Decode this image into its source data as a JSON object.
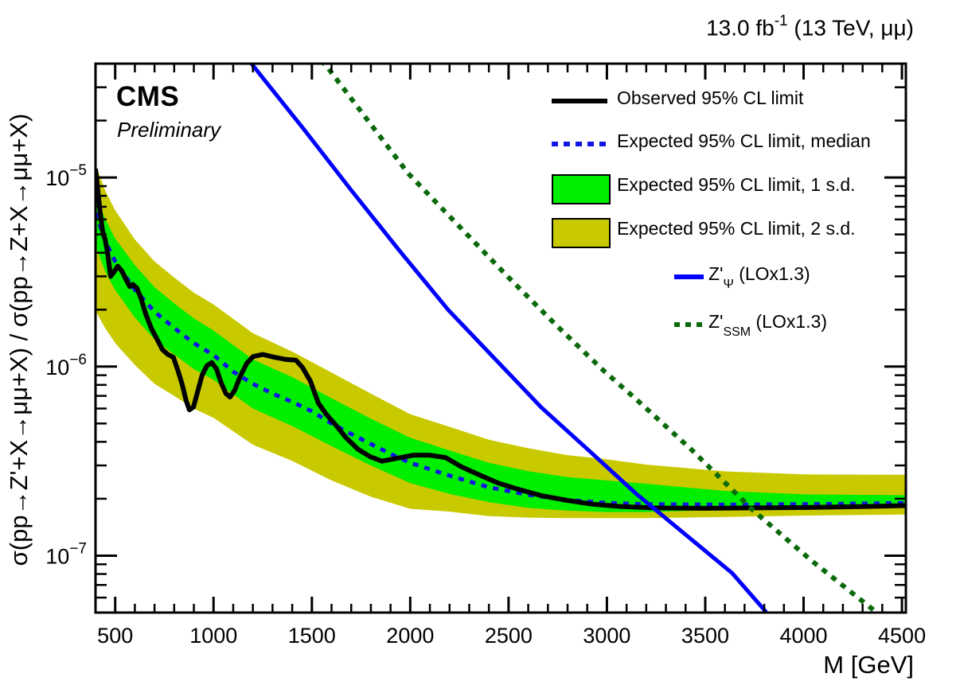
{
  "header": {
    "lumi_prefix": "13.0 fb",
    "lumi_sup": "-1",
    "lumi_suffix": " (13 TeV, μμ)"
  },
  "watermark": {
    "experiment": "CMS",
    "status": "Preliminary"
  },
  "axes": {
    "x_label": "M [GeV]",
    "y_label": "σ(pp→Z'+X→μμ+X) / σ(pp→Z+X→μμ+X)"
  },
  "legend": {
    "items": [
      {
        "label_pre": "Observed 95% CL limit",
        "label_sub": "",
        "label_post": "",
        "swatch": {
          "kind": "line",
          "color": "#000000"
        }
      },
      {
        "label_pre": "Expected 95% CL limit, median",
        "label_sub": "",
        "label_post": "",
        "swatch": {
          "kind": "dashes",
          "color": "#1414e6"
        }
      },
      {
        "label_pre": "Expected 95% CL limit, 1 s.d.",
        "label_sub": "",
        "label_post": "",
        "swatch": {
          "kind": "box",
          "color": "#00ee00"
        }
      },
      {
        "label_pre": "Expected 95% CL limit, 2 s.d.",
        "label_sub": "",
        "label_post": "",
        "swatch": {
          "kind": "box",
          "color": "#c9c900"
        }
      },
      {
        "label_pre": "Z'",
        "label_sub": "Ψ",
        "label_post": " (LOx1.3)",
        "swatch": {
          "kind": "line",
          "color": "#0000ff"
        }
      },
      {
        "label_pre": "Z'",
        "label_sub": "SSM",
        "label_post": " (LOx1.3)",
        "swatch": {
          "kind": "dots",
          "color": "#0a690a"
        }
      }
    ]
  },
  "chart_data": {
    "type": "line",
    "title": "",
    "xlabel": "M [GeV]",
    "ylabel": "σ(pp→Z'+X→μμ+X) / σ(pp→Z+X→μμ+X)",
    "xlim": [
      400,
      4520
    ],
    "ylim": [
      5e-08,
      4e-05
    ],
    "y_scale": "log",
    "x_major_ticks": [
      500,
      1000,
      1500,
      2000,
      2500,
      3000,
      3500,
      4000,
      4500
    ],
    "x_minor_step": 100,
    "y_major_exponents": [
      -5,
      -6,
      -7
    ],
    "grid": false,
    "legend_position": "top-right",
    "colors": {
      "observed": "#000000",
      "expected_median": "#1414e6",
      "band_1sd": "#00ee00",
      "band_2sd": "#c9c900",
      "zpsi": "#0000ff",
      "zssm": "#0a690a"
    },
    "series": [
      {
        "name": "Observed 95% CL limit",
        "style": "solid",
        "points": [
          [
            400,
            1.11e-05
          ],
          [
            412,
            8.5e-06
          ],
          [
            424,
            6.5e-06
          ],
          [
            436,
            5.2e-06
          ],
          [
            449,
            4.7e-06
          ],
          [
            461,
            4e-06
          ],
          [
            477,
            3e-06
          ],
          [
            497,
            3.2e-06
          ],
          [
            513,
            3.4e-06
          ],
          [
            534,
            3.2e-06
          ],
          [
            554,
            2.9e-06
          ],
          [
            574,
            2.65e-06
          ],
          [
            590,
            2.72e-06
          ],
          [
            610,
            2.6e-06
          ],
          [
            631,
            2.3e-06
          ],
          [
            655,
            1.9e-06
          ],
          [
            683,
            1.6e-06
          ],
          [
            712,
            1.4e-06
          ],
          [
            740,
            1.23e-06
          ],
          [
            768,
            1.16e-06
          ],
          [
            796,
            1.12e-06
          ],
          [
            821,
            9.4e-07
          ],
          [
            841,
            8e-07
          ],
          [
            861,
            6.6e-07
          ],
          [
            877,
            5.9e-07
          ],
          [
            898,
            6.1e-07
          ],
          [
            918,
            7.3e-07
          ],
          [
            942,
            9e-07
          ],
          [
            966,
            1.01e-06
          ],
          [
            991,
            1.05e-06
          ],
          [
            1015,
            9.7e-07
          ],
          [
            1039,
            8.2e-07
          ],
          [
            1063,
            7.2e-07
          ],
          [
            1084,
            6.9e-07
          ],
          [
            1108,
            7.5e-07
          ],
          [
            1136,
            8.9e-07
          ],
          [
            1169,
            1.04e-06
          ],
          [
            1201,
            1.13e-06
          ],
          [
            1250,
            1.16e-06
          ],
          [
            1310,
            1.12e-06
          ],
          [
            1371,
            1.09e-06
          ],
          [
            1419,
            1.08e-06
          ],
          [
            1452,
            9.9e-07
          ],
          [
            1492,
            8.4e-07
          ],
          [
            1533,
            6.4e-07
          ],
          [
            1573,
            5.6e-07
          ],
          [
            1622,
            4.9e-07
          ],
          [
            1674,
            4.2e-07
          ],
          [
            1735,
            3.65e-07
          ],
          [
            1796,
            3.34e-07
          ],
          [
            1856,
            3.16e-07
          ],
          [
            1937,
            3.28e-07
          ],
          [
            2018,
            3.4e-07
          ],
          [
            2099,
            3.4e-07
          ],
          [
            2180,
            3.3e-07
          ],
          [
            2261,
            2.95e-07
          ],
          [
            2342,
            2.7e-07
          ],
          [
            2443,
            2.43e-07
          ],
          [
            2544,
            2.25e-07
          ],
          [
            2665,
            2.08e-07
          ],
          [
            2787,
            1.97e-07
          ],
          [
            2928,
            1.87e-07
          ],
          [
            3070,
            1.82e-07
          ],
          [
            3232,
            1.79e-07
          ],
          [
            3474,
            1.78e-07
          ],
          [
            3758,
            1.79e-07
          ],
          [
            4041,
            1.8e-07
          ],
          [
            4324,
            1.82e-07
          ],
          [
            4520,
            1.84e-07
          ]
        ]
      },
      {
        "name": "Expected 95% CL limit, median",
        "style": "dashed",
        "points": [
          [
            400,
            6.5e-06
          ],
          [
            450,
            4.6e-06
          ],
          [
            500,
            3.6e-06
          ],
          [
            600,
            2.55e-06
          ],
          [
            700,
            1.95e-06
          ],
          [
            800,
            1.6e-06
          ],
          [
            900,
            1.33e-06
          ],
          [
            1000,
            1.15e-06
          ],
          [
            1100,
            9.4e-07
          ],
          [
            1200,
            8.1e-07
          ],
          [
            1300,
            7.2e-07
          ],
          [
            1400,
            6.5e-07
          ],
          [
            1500,
            5.8e-07
          ],
          [
            1600,
            5e-07
          ],
          [
            1700,
            4.4e-07
          ],
          [
            1800,
            3.9e-07
          ],
          [
            1900,
            3.45e-07
          ],
          [
            2000,
            3.1e-07
          ],
          [
            2200,
            2.65e-07
          ],
          [
            2400,
            2.3e-07
          ],
          [
            2600,
            2.1e-07
          ],
          [
            2800,
            1.97e-07
          ],
          [
            3000,
            1.9e-07
          ],
          [
            3200,
            1.87e-07
          ],
          [
            3600,
            1.86e-07
          ],
          [
            4000,
            1.87e-07
          ],
          [
            4200,
            1.88e-07
          ],
          [
            4520,
            1.9e-07
          ]
        ]
      },
      {
        "name": "Expected 95% CL limit, 1 s.d.",
        "style": "band",
        "x": [
          400,
          450,
          500,
          600,
          700,
          800,
          900,
          1000,
          1200,
          1400,
          1600,
          1800,
          2000,
          2200,
          2400,
          2600,
          2800,
          3000,
          3200,
          3600,
          4000,
          4520
        ],
        "upper": [
          8.1e-06,
          6e-06,
          4.75e-06,
          3.44e-06,
          2.63e-06,
          2.16e-06,
          1.8e-06,
          1.55e-06,
          1.09e-06,
          8.8e-07,
          6.8e-07,
          5.3e-07,
          4.2e-07,
          3.6e-07,
          3.1e-07,
          2.8e-07,
          2.6e-07,
          2.5e-07,
          2.4e-07,
          2.2e-07,
          2.11e-07,
          2.09e-07
        ],
        "lower": [
          4.33e-06,
          3.17e-06,
          2.54e-06,
          1.82e-06,
          1.39e-06,
          1.16e-06,
          9.7e-07,
          8.5e-07,
          6e-07,
          4.85e-07,
          3.8e-07,
          3e-07,
          2.42e-07,
          2.12e-07,
          1.92e-07,
          1.79e-07,
          1.73e-07,
          1.7e-07,
          1.7e-07,
          1.75e-07,
          1.78e-07,
          1.83e-07
        ]
      },
      {
        "name": "Expected 95% CL limit, 2 s.d.",
        "style": "band",
        "x": [
          400,
          450,
          500,
          600,
          700,
          800,
          900,
          1000,
          1200,
          1400,
          1600,
          1800,
          2000,
          2200,
          2400,
          2600,
          2800,
          3000,
          3200,
          3600,
          4000,
          4520
        ],
        "upper": [
          1.17e-05,
          8.5e-06,
          6.7e-06,
          4.7e-06,
          3.6e-06,
          2.96e-06,
          2.46e-06,
          2.13e-06,
          1.5e-06,
          1.2e-06,
          9.3e-07,
          7.2e-07,
          5.6e-07,
          4.8e-07,
          4.1e-07,
          3.7e-07,
          3.4e-07,
          3.23e-07,
          3.03e-07,
          2.79e-07,
          2.69e-07,
          2.68e-07
        ],
        "lower": [
          1.97e-06,
          1.59e-06,
          1.33e-06,
          1.02e-06,
          8.1e-07,
          7e-07,
          6e-07,
          5.35e-07,
          3.86e-07,
          3.17e-07,
          2.5e-07,
          2.05e-07,
          1.77e-07,
          1.71e-07,
          1.62e-07,
          1.59e-07,
          1.58e-07,
          1.58e-07,
          1.58e-07,
          1.6e-07,
          1.63e-07,
          1.65e-07
        ]
      },
      {
        "name": "Z'_psi (LOx1.3)",
        "style": "solid",
        "points": [
          [
            1150,
            4.6e-05
          ],
          [
            1201,
            3.9e-05
          ],
          [
            1452,
            1.84e-05
          ],
          [
            1695,
            8.7e-06
          ],
          [
            1937,
            4.2e-06
          ],
          [
            2192,
            2e-06
          ],
          [
            2423,
            1.12e-06
          ],
          [
            2665,
            6.1e-07
          ],
          [
            2908,
            3.6e-07
          ],
          [
            3150,
            2.12e-07
          ],
          [
            3393,
            1.31e-07
          ],
          [
            3636,
            8.1e-08
          ],
          [
            3798,
            5.2e-08
          ],
          [
            3860,
            4.3e-08
          ]
        ]
      },
      {
        "name": "Z'_SSM (LOx1.3)",
        "style": "dotted",
        "points": [
          [
            1500,
            4.6e-05
          ],
          [
            1573,
            3.9e-05
          ],
          [
            1990,
            1.05e-05
          ],
          [
            2503,
            2.94e-06
          ],
          [
            2746,
            1.64e-06
          ],
          [
            2989,
            9.4e-07
          ],
          [
            3150,
            6.7e-07
          ],
          [
            3434,
            3.6e-07
          ],
          [
            3745,
            1.73e-07
          ],
          [
            4041,
            9.4e-08
          ],
          [
            4352,
            5.2e-08
          ],
          [
            4520,
            3.6e-08
          ]
        ]
      }
    ]
  }
}
